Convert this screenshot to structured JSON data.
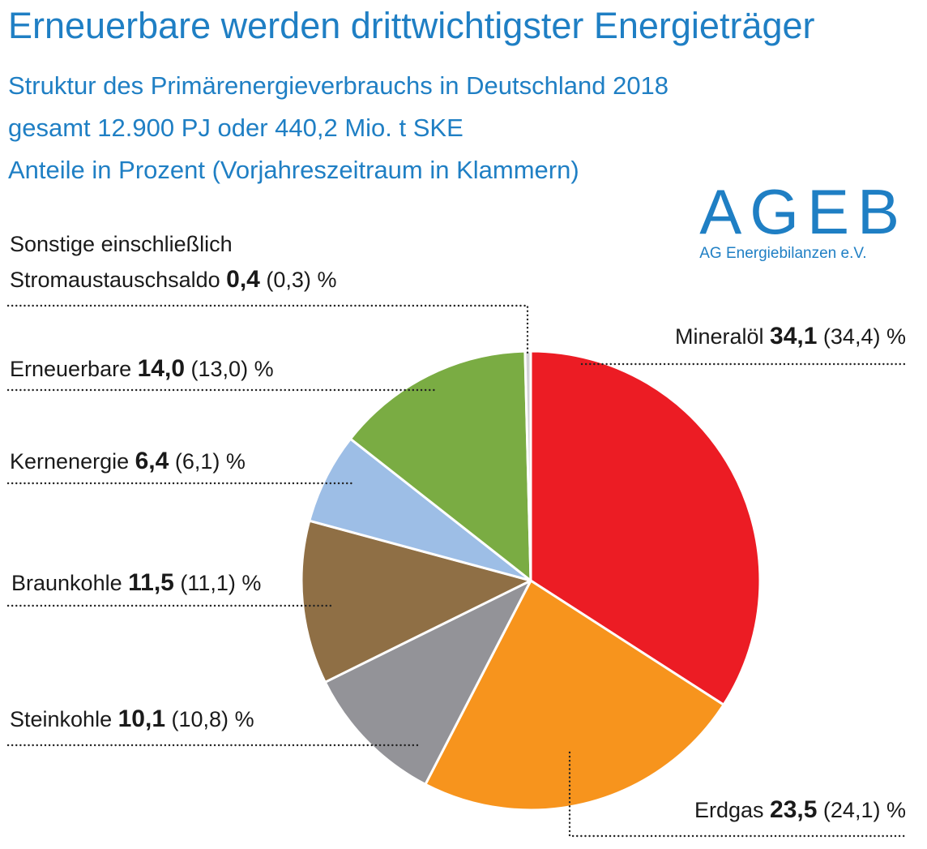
{
  "header": {
    "title": "Erneuerbare werden drittwichtigster Energieträger",
    "subtitle_lines": [
      "Struktur des Primärenergieverbrauchs in Deutschland 2018",
      "gesamt 12.900 PJ oder 440,2 Mio. t SKE",
      "Anteile in Prozent (Vorjahreszeitraum in Klammern)"
    ]
  },
  "logo": {
    "word": "AGEB",
    "subline": "AG Energiebilanzen e.V."
  },
  "colors": {
    "accent": "#1f7fc4"
  },
  "chart_data": {
    "type": "pie",
    "unit": "%",
    "slices": [
      {
        "name": "Mineralöl",
        "value": 34.1,
        "value_label": "34,1",
        "previous_label": "(34,4)",
        "color": "#ec1c24"
      },
      {
        "name": "Erdgas",
        "value": 23.5,
        "value_label": "23,5",
        "previous_label": "(24,1)",
        "color": "#f7941d"
      },
      {
        "name": "Steinkohle",
        "value": 10.1,
        "value_label": "10,1",
        "previous_label": "(10,8)",
        "color": "#939398"
      },
      {
        "name": "Braunkohle",
        "value": 11.5,
        "value_label": "11,5",
        "previous_label": "(11,1)",
        "color": "#8f6f45"
      },
      {
        "name": "Kernenergie",
        "value": 6.4,
        "value_label": "6,4",
        "previous_label": "(6,1)",
        "color": "#9dbee6"
      },
      {
        "name": "Erneuerbare",
        "value": 14.0,
        "value_label": "14,0",
        "previous_label": "(13,0)",
        "color": "#7aac43"
      },
      {
        "name_lines": [
          "Sonstige einschließlich",
          "Stromaustauschsaldo"
        ],
        "value": 0.4,
        "value_label": "0,4",
        "previous_label": "(0,3)",
        "color": "#d3d3d8"
      }
    ]
  }
}
